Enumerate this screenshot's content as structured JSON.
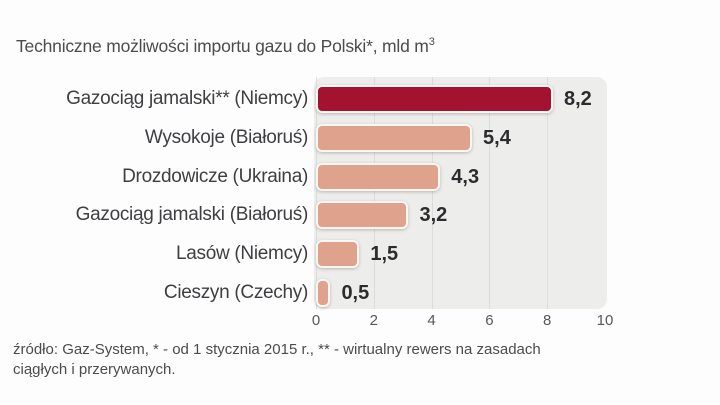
{
  "title": {
    "main": "Techniczne możliwości importu gazu do Polski*, mld m",
    "sup": "3"
  },
  "chart_data": {
    "type": "bar",
    "orientation": "horizontal",
    "title": "Techniczne możliwości importu gazu do Polski*, mld m³",
    "unit": "mld m³",
    "categories": [
      "Gazociąg jamalski** (Niemcy)",
      "Wysokoje (Białoruś)",
      "Drozdowicze (Ukraina)",
      "Gazociąg jamalski (Białoruś)",
      "Lasów (Niemcy)",
      "Cieszyn (Czechy)"
    ],
    "values": [
      8.2,
      5.4,
      4.3,
      3.2,
      1.5,
      0.5
    ],
    "value_labels": [
      "8,2",
      "5,4",
      "4,3",
      "3,2",
      "1,5",
      "0,5"
    ],
    "x_ticks": [
      0,
      2,
      4,
      6,
      8,
      10
    ],
    "xlim": [
      0,
      10
    ],
    "grid": true,
    "legend": "none",
    "highlight_index": 0,
    "colors": {
      "highlight_bar": "#a41231",
      "bar": "#dfa28c",
      "bar_border": "#fbf8f4",
      "plot_background": "#ededec",
      "gridline": "#dcdcdb",
      "value_text": "#2b2c2e",
      "label_text": "#3e3f42",
      "tick_text": "#56575a"
    }
  },
  "footer": {
    "lines": [
      "źródło: Gaz-System, * - od 1 stycznia 2015 r., ** - wirtualny rewers na zasadach",
      "ciągłych i przerywanych."
    ]
  }
}
